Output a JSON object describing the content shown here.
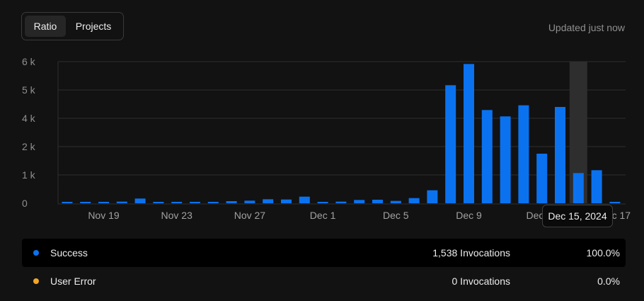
{
  "tabs": [
    {
      "label": "Ratio",
      "active": true
    },
    {
      "label": "Projects",
      "active": false
    }
  ],
  "updated_text": "Updated just now",
  "tooltip": {
    "label": "Dec 15, 2024"
  },
  "legend": [
    {
      "name": "Success",
      "invocations": "1,538 Invocations",
      "percent": "100.0%",
      "color": "#0a72ef"
    },
    {
      "name": "User Error",
      "invocations": "0 Invocations",
      "percent": "0.0%",
      "color": "#f5a524"
    }
  ],
  "chart_data": {
    "type": "bar",
    "y_tick_labels": [
      "6 k",
      "5 k",
      "4 k",
      "2 k",
      "1 k",
      "0"
    ],
    "ylim": [
      0,
      6000
    ],
    "x_tick_labels": [
      "Nov 19",
      "Nov 23",
      "Nov 27",
      "Dec 1",
      "Dec 5",
      "Dec 9",
      "Dec 13",
      "Dec 17"
    ],
    "categories": [
      "Nov 17",
      "Nov 18",
      "Nov 19",
      "Nov 20",
      "Nov 21",
      "Nov 22",
      "Nov 23",
      "Nov 24",
      "Nov 25",
      "Nov 26",
      "Nov 27",
      "Nov 28",
      "Nov 29",
      "Nov 30",
      "Dec 1",
      "Dec 2",
      "Dec 3",
      "Dec 4",
      "Dec 5",
      "Dec 6",
      "Dec 7",
      "Dec 8",
      "Dec 9",
      "Dec 10",
      "Dec 11",
      "Dec 12",
      "Dec 13",
      "Dec 14",
      "Dec 15",
      "Dec 16",
      "Dec 17"
    ],
    "series": [
      {
        "name": "Success",
        "color": "#0a72ef",
        "values": [
          30,
          50,
          50,
          70,
          200,
          40,
          50,
          40,
          40,
          90,
          110,
          170,
          160,
          280,
          50,
          70,
          140,
          150,
          100,
          220,
          550,
          5000,
          5900,
          3950,
          3680,
          4150,
          2100,
          4080,
          1280,
          1400,
          20
        ]
      }
    ],
    "highlight_category": "Dec 15",
    "grid": true
  }
}
